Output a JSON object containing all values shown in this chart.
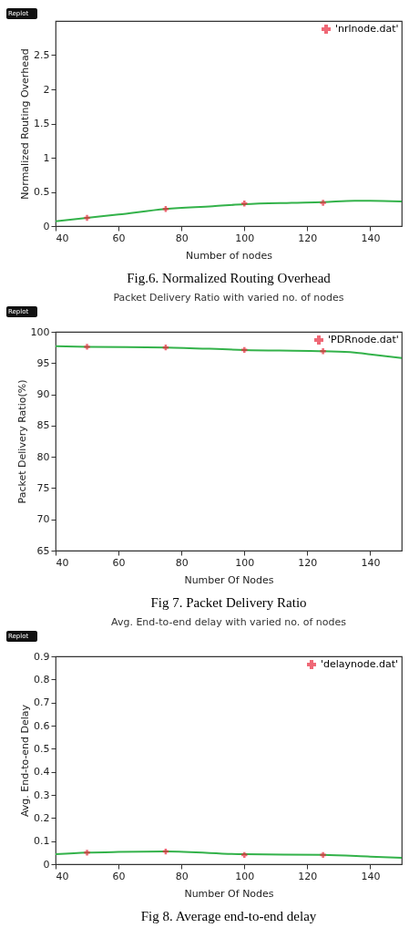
{
  "chart_data": [
    {
      "type": "scatter",
      "xlabel": "Number of nodes",
      "ylabel": "Normalized Routing Overhead",
      "annotations": [
        "Replot",
        "Fig.6. Normalized Routing Overhead"
      ],
      "xlim": [
        40,
        150
      ],
      "xticks": [
        40,
        60,
        80,
        100,
        120,
        140
      ],
      "ylim": [
        0,
        3
      ],
      "yticks": [
        0,
        0.5,
        1,
        1.5,
        2,
        2.5
      ],
      "legend": "top right",
      "grid": false,
      "series": [
        {
          "name": "'nrlnode.dat'",
          "color": "#e8283c",
          "marker": "cross",
          "x": [
            50,
            75,
            100,
            125
          ],
          "values": [
            0.12,
            0.25,
            0.33,
            0.34
          ]
        },
        {
          "type": "line",
          "color": "#33b24a",
          "x": [
            40,
            50,
            60,
            75,
            90,
            100,
            115,
            125,
            135,
            140,
            150
          ],
          "values": [
            0.07,
            0.12,
            0.17,
            0.25,
            0.29,
            0.32,
            0.34,
            0.35,
            0.37,
            0.37,
            0.36
          ]
        }
      ]
    },
    {
      "type": "scatter",
      "title": "Packet Delivery Ratio with varied no. of nodes",
      "xlabel": "Number Of Nodes",
      "ylabel": "Packet Delivery Ratio(%)",
      "annotations": [
        "Replot",
        "Fig 7. Packet Delivery Ratio"
      ],
      "xlim": [
        40,
        150
      ],
      "xticks": [
        40,
        60,
        80,
        100,
        120,
        140
      ],
      "ylim": [
        65,
        100
      ],
      "yticks": [
        65,
        70,
        75,
        80,
        85,
        90,
        95,
        100
      ],
      "legend": "top right",
      "grid": false,
      "series": [
        {
          "name": "'PDRnode.dat'",
          "color": "#e8283c",
          "marker": "cross",
          "x": [
            50,
            75,
            100,
            125
          ],
          "values": [
            97.6,
            97.5,
            97.1,
            96.9
          ]
        },
        {
          "type": "line",
          "color": "#33b24a",
          "x": [
            40,
            50,
            75,
            100,
            125,
            135,
            140,
            150
          ],
          "values": [
            97.7,
            97.6,
            97.5,
            97.1,
            96.9,
            96.7,
            96.4,
            95.8
          ]
        }
      ]
    },
    {
      "type": "scatter",
      "title": "Avg. End-to-end delay with varied no. of nodes",
      "xlabel": "Number Of Nodes",
      "ylabel": "Avg. End-to-end Delay",
      "annotations": [
        "Replot",
        "Fig 8. Average end-to-end delay"
      ],
      "xlim": [
        40,
        150
      ],
      "xticks": [
        40,
        60,
        80,
        100,
        120,
        140
      ],
      "ylim": [
        0,
        0.9
      ],
      "yticks": [
        0,
        0.1,
        0.2,
        0.3,
        0.4,
        0.5,
        0.6,
        0.7,
        0.8,
        0.9
      ],
      "legend": "top right",
      "grid": false,
      "series": [
        {
          "name": "'delaynode.dat'",
          "color": "#e8283c",
          "marker": "cross",
          "x": [
            50,
            75,
            100,
            125
          ],
          "values": [
            0.05,
            0.055,
            0.04,
            0.04
          ]
        },
        {
          "type": "line",
          "color": "#33b24a",
          "x": [
            40,
            50,
            60,
            75,
            100,
            125,
            140,
            150
          ],
          "values": [
            0.043,
            0.05,
            0.053,
            0.055,
            0.043,
            0.04,
            0.033,
            0.028
          ]
        }
      ]
    }
  ]
}
